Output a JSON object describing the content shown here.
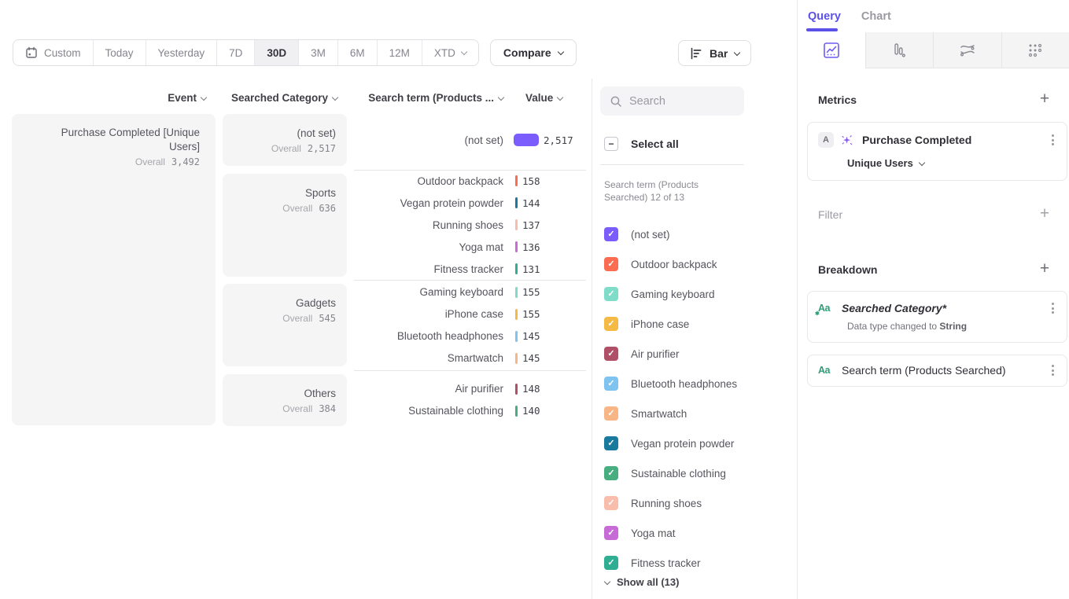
{
  "accent": "#5B51E8",
  "toolbar": {
    "date_ranges": [
      "Custom",
      "Today",
      "Yesterday",
      "7D",
      "30D",
      "3M",
      "6M",
      "12M",
      "XTD"
    ],
    "active_range": "30D",
    "compare_label": "Compare",
    "chart_type_label": "Bar"
  },
  "table": {
    "headers": [
      "Event",
      "Searched Category",
      "Search term (Products ...",
      "Value"
    ],
    "event": {
      "name": "Purchase Completed [Unique Users]",
      "overall_label": "Overall",
      "overall": "3,492"
    },
    "overall_label": "Overall",
    "groups": [
      {
        "category": "(not set)",
        "overall": "2,517",
        "rows": [
          {
            "term": "(not set)",
            "value": "2,517",
            "color": "#7B5CFC",
            "wide": true
          }
        ]
      },
      {
        "category": "Sports",
        "overall": "636",
        "rows": [
          {
            "term": "Outdoor backpack",
            "value": "158",
            "color": "#FB6C50"
          },
          {
            "term": "Vegan protein powder",
            "value": "144",
            "color": "#1A7A9E"
          },
          {
            "term": "Running shoes",
            "value": "137",
            "color": "#F9BDAC"
          },
          {
            "term": "Yoga mat",
            "value": "136",
            "color": "#C76BD6"
          },
          {
            "term": "Fitness tracker",
            "value": "131",
            "color": "#2FAE94"
          }
        ]
      },
      {
        "category": "Gadgets",
        "overall": "545",
        "rows": [
          {
            "term": "Gaming keyboard",
            "value": "155",
            "color": "#7EDCC8"
          },
          {
            "term": "iPhone case",
            "value": "155",
            "color": "#F5BA45"
          },
          {
            "term": "Bluetooth headphones",
            "value": "145",
            "color": "#7FC4F0"
          },
          {
            "term": "Smartwatch",
            "value": "145",
            "color": "#F8B585"
          }
        ]
      },
      {
        "category": "Others",
        "overall": "384",
        "rows": [
          {
            "term": "Air purifier",
            "value": "148",
            "color": "#B05066"
          },
          {
            "term": "Sustainable clothing",
            "value": "140",
            "color": "#48AE80"
          }
        ]
      }
    ]
  },
  "filter_panel": {
    "search_placeholder": "Search",
    "select_all_label": "Select all",
    "list_label": "Search term (Products Searched) 12 of 13",
    "items": [
      {
        "label": "(not set)",
        "color": "#7B5CFC",
        "checked": true
      },
      {
        "label": "Outdoor backpack",
        "color": "#FB6C50",
        "checked": true
      },
      {
        "label": "Gaming keyboard",
        "color": "#7EDCC8",
        "checked": true
      },
      {
        "label": "iPhone case",
        "color": "#F5BA45",
        "checked": true
      },
      {
        "label": "Air purifier",
        "color": "#B05066",
        "checked": true
      },
      {
        "label": "Bluetooth headphones",
        "color": "#7FC4F0",
        "checked": true
      },
      {
        "label": "Smartwatch",
        "color": "#F8B585",
        "checked": true
      },
      {
        "label": "Vegan protein powder",
        "color": "#1A7A9E",
        "checked": true
      },
      {
        "label": "Sustainable clothing",
        "color": "#48AE80",
        "checked": true
      },
      {
        "label": "Running shoes",
        "color": "#F9BDAC",
        "checked": true
      },
      {
        "label": "Yoga mat",
        "color": "#C76BD6",
        "checked": true
      },
      {
        "label": "Fitness tracker",
        "color": "#2FAE94",
        "checked": true
      }
    ],
    "show_all_label": "Show all (13)"
  },
  "sidebar": {
    "tabs": [
      {
        "label": "Query",
        "active": true
      },
      {
        "label": "Chart",
        "active": false
      }
    ],
    "metrics": {
      "heading": "Metrics",
      "badge": "A",
      "event": "Purchase Completed",
      "aggregation": "Unique Users"
    },
    "filter_heading": "Filter",
    "breakdown": {
      "heading": "Breakdown",
      "items": [
        {
          "icon": "Aa",
          "label": "Searched Category*",
          "modified": true,
          "note": "Data type changed to ",
          "note_emphasis": "String"
        },
        {
          "icon": "Aa",
          "label": "Search term (Products Searched)",
          "modified": false
        }
      ]
    }
  }
}
